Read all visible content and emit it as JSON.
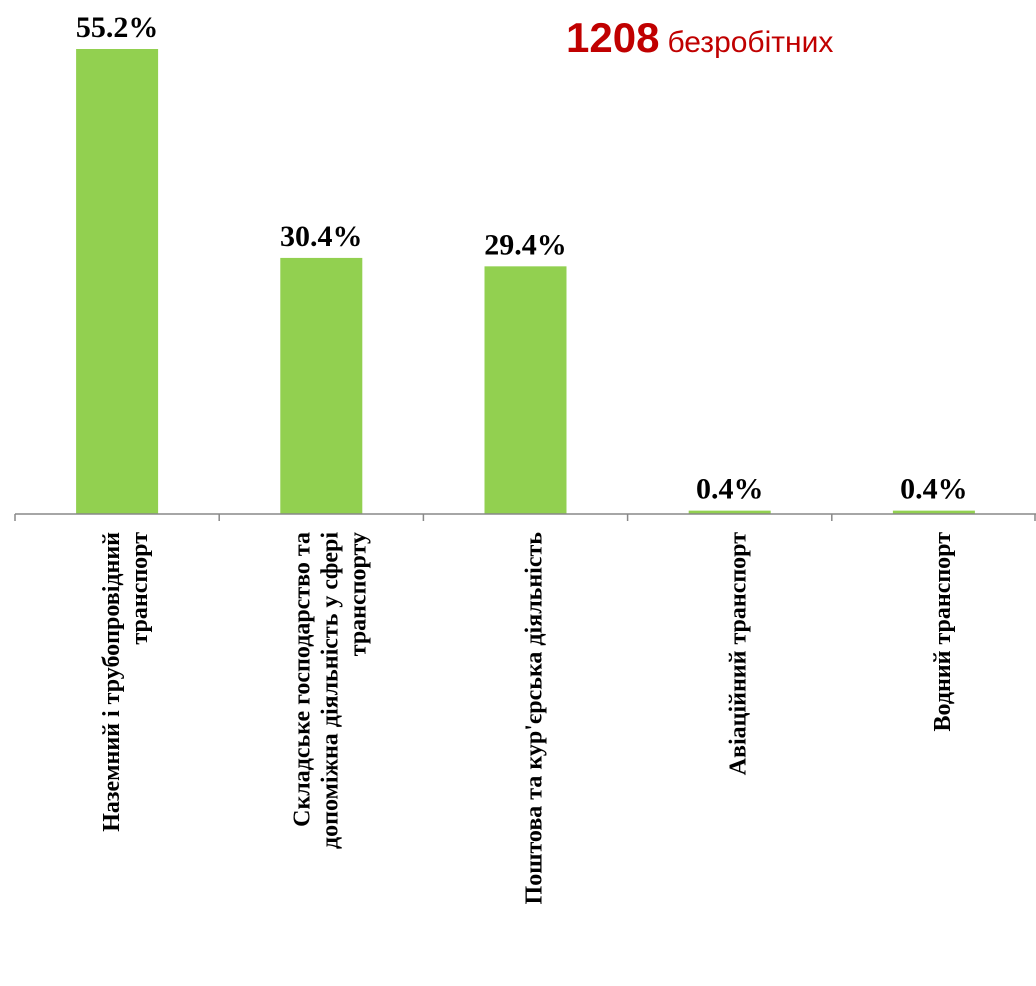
{
  "headline": {
    "count": "1208",
    "text": "безробітних"
  },
  "colors": {
    "bar": "#92d050",
    "headline": "#c00000",
    "axis": "#888888"
  },
  "chart_data": {
    "type": "bar",
    "categories": [
      [
        "Наземний і трубопровідний",
        "транспорт"
      ],
      [
        "Складське господарство та",
        "допоміжна діяльність у сфері",
        "транспорту"
      ],
      [
        "Поштова та кур'єрська діяльність"
      ],
      [
        "Авіаційний транспорт"
      ],
      [
        "Водний транспорт"
      ]
    ],
    "values": [
      55.2,
      30.4,
      29.4,
      0.4,
      0.4
    ],
    "data_labels": [
      "55.2%",
      "30.4%",
      "29.4%",
      "0.4%",
      "0.4%"
    ],
    "ylim": [
      0,
      55.2
    ],
    "grid": false,
    "legend": "none"
  }
}
